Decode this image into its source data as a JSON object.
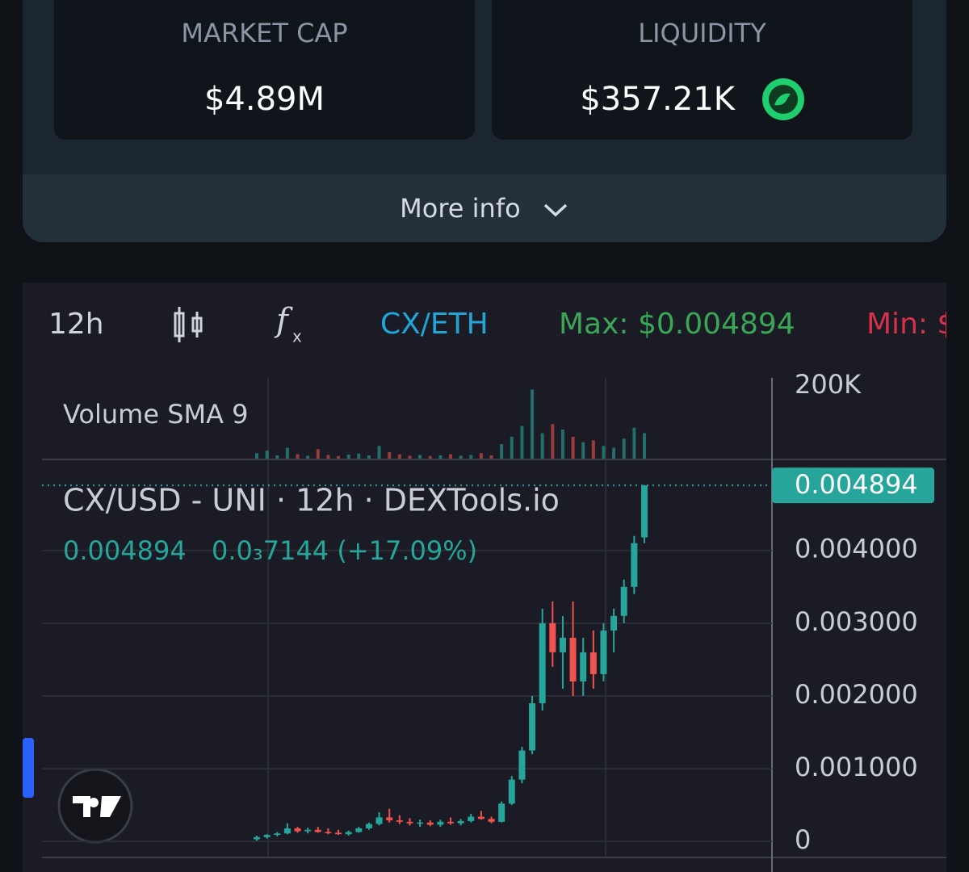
{
  "header": {
    "market_cap": {
      "label": "MARKET CAP",
      "value": "$4.89M"
    },
    "liquidity": {
      "label": "LIQUIDITY",
      "value": "$357.21K"
    },
    "more_info": "More info"
  },
  "toolbar": {
    "interval": "12h",
    "pair": "CX/ETH",
    "max": "Max: $0.004894",
    "min": "Min: $"
  },
  "chart_data": {
    "type": "candlestick",
    "title": "CX/USD - UNI · 12h · DEXTools.io",
    "change": "0.0₃7144 (+17.09%)",
    "volume_label": "Volume SMA 9",
    "open": [
      3e-05,
      6e-05,
      9e-05,
      0.00011,
      0.00018,
      0.00014,
      0.00016,
      0.00013,
      0.00012,
      0.0001,
      0.00013,
      0.00018,
      0.00024,
      0.00033,
      0.00029,
      0.00027,
      0.00025,
      0.00026,
      0.00023,
      0.00027,
      0.00025,
      0.00028,
      0.00034,
      0.00031,
      0.00027,
      0.00052,
      0.00085,
      0.00125,
      0.0019,
      0.003,
      0.0026,
      0.0028,
      0.0022,
      0.0026,
      0.0023,
      0.0029,
      0.0031,
      0.0035,
      0.00418
    ],
    "high": [
      8e-05,
      0.0001,
      0.00013,
      0.00025,
      0.0002,
      0.00019,
      0.0002,
      0.00018,
      0.00016,
      0.00015,
      0.0002,
      0.00026,
      0.0004,
      0.00045,
      0.00036,
      0.00032,
      0.0003,
      0.00029,
      0.0003,
      0.00033,
      0.00031,
      0.00038,
      0.00042,
      0.00034,
      0.00055,
      0.0009,
      0.0013,
      0.002,
      0.0032,
      0.0033,
      0.0031,
      0.0033,
      0.0028,
      0.0029,
      0.003,
      0.0032,
      0.0036,
      0.0042,
      0.0049
    ],
    "low": [
      1e-05,
      4e-05,
      7e-05,
      0.0001,
      0.00012,
      0.00011,
      0.00012,
      0.0001,
      9e-05,
      8e-05,
      0.00012,
      0.00016,
      0.00022,
      0.00026,
      0.00024,
      0.00022,
      0.0002,
      0.00021,
      0.0002,
      0.00023,
      0.00022,
      0.00026,
      0.0003,
      0.00025,
      0.00026,
      0.0005,
      0.0008,
      0.0012,
      0.0018,
      0.0024,
      0.0021,
      0.002,
      0.002,
      0.0021,
      0.0022,
      0.0026,
      0.003,
      0.0034,
      0.0041
    ],
    "close": [
      6e-05,
      9e-05,
      0.00011,
      0.00018,
      0.00014,
      0.00016,
      0.00013,
      0.00012,
      0.0001,
      0.00013,
      0.00018,
      0.00024,
      0.00033,
      0.00029,
      0.00027,
      0.00025,
      0.00026,
      0.00023,
      0.00027,
      0.00025,
      0.00028,
      0.00034,
      0.00031,
      0.00027,
      0.00052,
      0.00085,
      0.00125,
      0.0019,
      0.003,
      0.0026,
      0.0028,
      0.0022,
      0.0026,
      0.0023,
      0.0029,
      0.0031,
      0.0035,
      0.0041,
      0.004894
    ],
    "volume": [
      15000,
      22000,
      9000,
      30000,
      12000,
      8000,
      26000,
      10000,
      7000,
      11000,
      14000,
      9000,
      35000,
      18000,
      12000,
      8000,
      10000,
      7000,
      9000,
      12000,
      8000,
      10000,
      15000,
      9000,
      40000,
      60000,
      90000,
      190000,
      70000,
      95000,
      80000,
      60000,
      45000,
      50000,
      35000,
      30000,
      55000,
      85000,
      70000
    ],
    "up_color": "#26a69a",
    "down_color": "#ef5350",
    "ylim": [
      -0.00022,
      0.00524
    ],
    "yticks": [
      0,
      {
        "value": 0.001,
        "label": "0.001000"
      },
      {
        "value": 0.002,
        "label": "0.002000"
      },
      {
        "value": 0.003,
        "label": "0.003000"
      },
      {
        "value": 0.004,
        "label": "0.004000"
      }
    ],
    "volume_lim": [
      0,
      222000
    ],
    "volume_ticks": [
      {
        "value": 200000,
        "label": "200K"
      }
    ],
    "grid": true
  }
}
